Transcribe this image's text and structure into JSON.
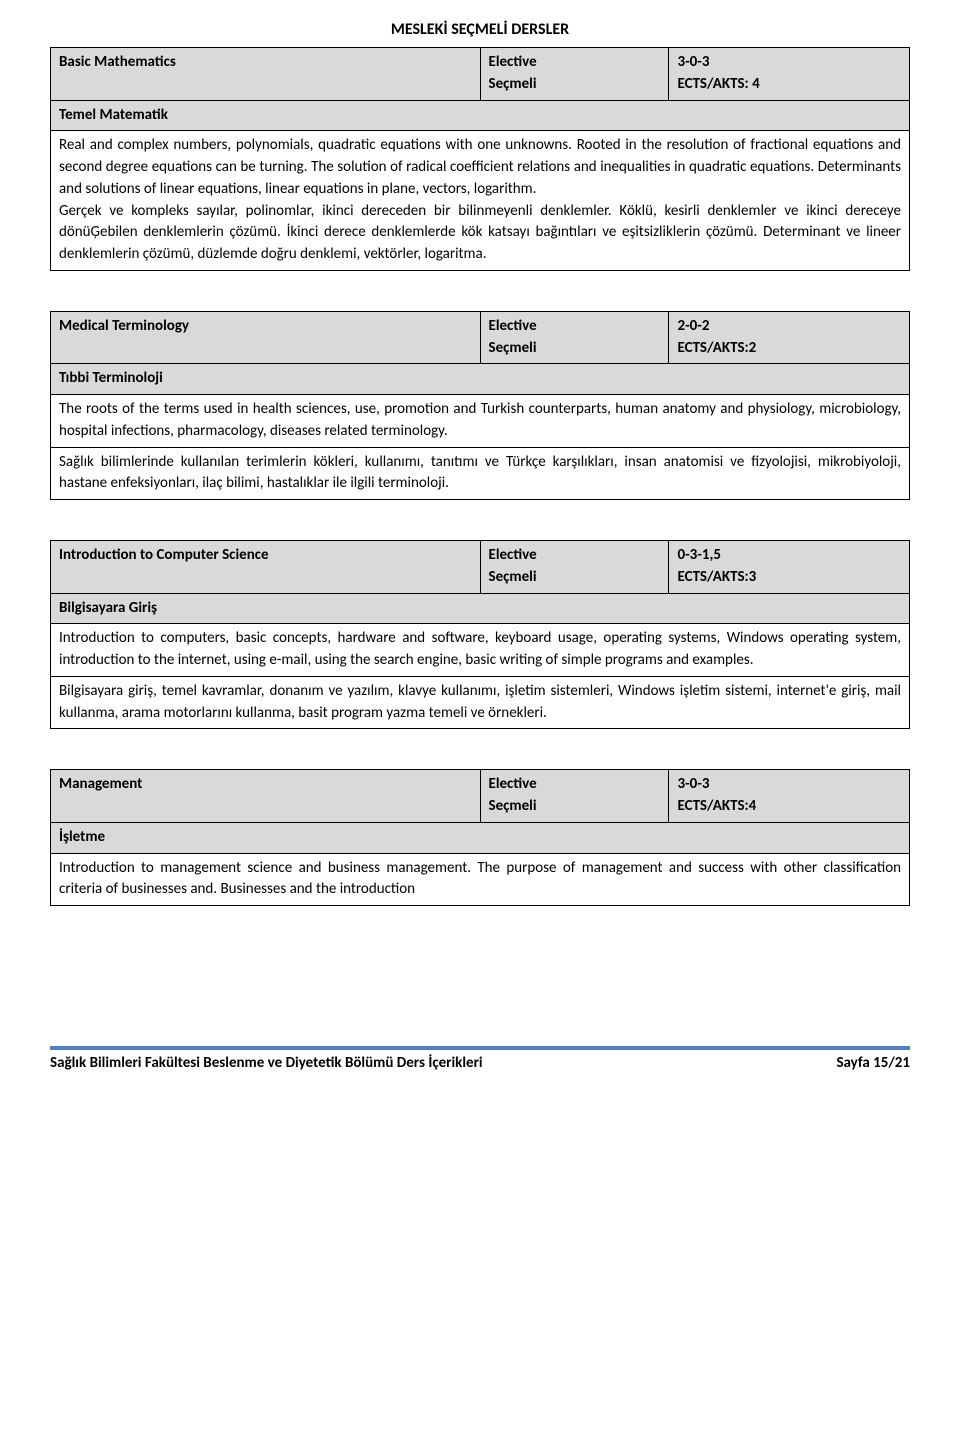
{
  "heading": "MESLEKİ SEÇMELİ DERSLER",
  "courses": [
    {
      "title_en": "Basic Mathematics",
      "type_en": "Elective",
      "type_tr": "Seçmeli",
      "hours": "3-0-3",
      "ects": "ECTS/AKTS: 4",
      "title_tr": "Temel Matematik",
      "desc_en": "Real and complex numbers, polynomials, quadratic equations with one unknowns. Rooted in the resolution of fractional equations and second degree equations can be turning. The solution of radical coefficient relations and inequalities in quadratic equations. Determinants and solutions of linear equations, linear equations in plane, vectors, logarithm.",
      "desc_tr": "Gerçek ve kompleks sayılar, polinomlar, ikinci dereceden bir bilinmeyenli denklemler. Köklü, kesirli denklemler ve ikinci dereceye dönüĢebilen denklemlerin çözümü. İkinci derece denklemlerde kök katsayı bağıntıları ve eşitsizliklerin çözümü. Determinant ve lineer denklemlerin çözümü, düzlemde doğru denklemi, vektörler, logaritma.",
      "desc_merged": true
    },
    {
      "title_en": "Medical Terminology",
      "type_en": "Elective",
      "type_tr": "Seçmeli",
      "hours": "2-0-2",
      "ects": "ECTS/AKTS:2",
      "title_tr": "Tıbbi Terminoloji",
      "desc_en": "The roots of the terms used in health sciences, use, promotion and Turkish counterparts, human anatomy and physiology, microbiology, hospital infections, pharmacology, diseases related terminology.",
      "desc_tr": "Sağlık bilimlerinde kullanılan terimlerin kökleri, kullanımı, tanıtımı ve Türkçe karşılıkları, insan anatomisi ve fizyolojisi,  mikrobiyoloji, hastane enfeksiyonları, ilaç bilimi, hastalıklar ile ilgili terminoloji."
    },
    {
      "title_en": "Introduction to Computer Science",
      "type_en": "Elective",
      "type_tr": "Seçmeli",
      "hours": "0-3-1,5",
      "ects": "ECTS/AKTS:3",
      "title_tr": "Bilgisayara Giriş",
      "desc_en": "Introduction to computers, basic concepts, hardware and software, keyboard usage, operating systems, Windows operating system, introduction to the internet, using e-mail, using the search engine, basic writing of simple programs and examples.",
      "desc_tr": "Bilgisayara giriş, temel kavramlar, donanım ve yazılım, klavye kullanımı, işletim sistemleri, Windows işletim sistemi, internet'e giriş, mail kullanma, arama motorlarını kullanma, basit program yazma temeli ve örnekleri."
    },
    {
      "title_en": "Management",
      "type_en": "Elective",
      "type_tr": "Seçmeli",
      "hours": "3-0-3",
      "ects": "ECTS/AKTS:4",
      "title_tr": "İşletme",
      "desc_en": "Introduction to management science and business management. The purpose of management and success with other classification criteria of businesses and. Businesses and the introduction",
      "desc_tr": null
    }
  ],
  "footer_left": "Sağlık Bilimleri Fakültesi Beslenme ve Diyetetik Bölümü Ders İçerikleri",
  "footer_right": "Sayfa 15/21",
  "colors": {
    "border": "#000000",
    "header_bg": "#d9d9d9",
    "rule": "#4f81bd"
  }
}
